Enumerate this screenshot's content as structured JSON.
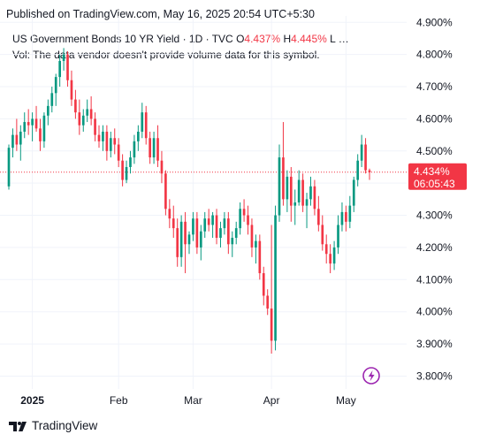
{
  "header": {
    "published_text": "Published on TradingView.com, May 16, 2025 20:54 UTC+5:30"
  },
  "legend": {
    "symbol": "US Government Bonds 10 YR Yield",
    "interval": "1D",
    "source": "TVC",
    "open_label": "O",
    "open_value": "4.437%",
    "high_label": "H",
    "high_value": "4.445%",
    "tail": "L …",
    "volume_note": "Vol: The data vendor doesn't provide volume data for this symbol."
  },
  "price_tag": {
    "value": "4.434%",
    "countdown": "06:05:43"
  },
  "footer": {
    "brand": "TradingView"
  },
  "colors": {
    "up": "#089981",
    "down": "#f23645",
    "grid": "#f0f3fa",
    "axis_text": "#131722",
    "lightning": "#9c27b0"
  },
  "chart_data": {
    "type": "candlestick",
    "y_axis": {
      "min": 3.76,
      "max": 4.92,
      "ticks": [
        "4.900%",
        "4.800%",
        "4.700%",
        "4.600%",
        "4.500%",
        "4.400%",
        "4.300%",
        "4.200%",
        "4.100%",
        "4.000%",
        "3.900%",
        "3.800%"
      ],
      "tick_values": [
        4.9,
        4.8,
        4.7,
        4.6,
        4.5,
        4.4,
        4.3,
        4.2,
        4.1,
        4.0,
        3.9,
        3.8
      ]
    },
    "x_axis": {
      "labels": [
        {
          "text": "2025",
          "index": 6,
          "bold": true
        },
        {
          "text": "Feb",
          "index": 28,
          "bold": false
        },
        {
          "text": "Mar",
          "index": 47,
          "bold": false
        },
        {
          "text": "Apr",
          "index": 67,
          "bold": false
        },
        {
          "text": "May",
          "index": 86,
          "bold": false
        }
      ]
    },
    "last_price": 4.434,
    "candles": [
      {
        "o": 4.39,
        "h": 4.52,
        "l": 4.38,
        "c": 4.51
      },
      {
        "o": 4.51,
        "h": 4.57,
        "l": 4.48,
        "c": 4.55
      },
      {
        "o": 4.55,
        "h": 4.6,
        "l": 4.5,
        "c": 4.52
      },
      {
        "o": 4.52,
        "h": 4.58,
        "l": 4.47,
        "c": 4.56
      },
      {
        "o": 4.56,
        "h": 4.62,
        "l": 4.54,
        "c": 4.59
      },
      {
        "o": 4.59,
        "h": 4.63,
        "l": 4.55,
        "c": 4.58
      },
      {
        "o": 4.58,
        "h": 4.62,
        "l": 4.53,
        "c": 4.6
      },
      {
        "o": 4.6,
        "h": 4.64,
        "l": 4.56,
        "c": 4.57
      },
      {
        "o": 4.57,
        "h": 4.6,
        "l": 4.5,
        "c": 4.53
      },
      {
        "o": 4.53,
        "h": 4.62,
        "l": 4.51,
        "c": 4.61
      },
      {
        "o": 4.61,
        "h": 4.66,
        "l": 4.58,
        "c": 4.64
      },
      {
        "o": 4.64,
        "h": 4.7,
        "l": 4.62,
        "c": 4.68
      },
      {
        "o": 4.68,
        "h": 4.74,
        "l": 4.64,
        "c": 4.73
      },
      {
        "o": 4.73,
        "h": 4.8,
        "l": 4.7,
        "c": 4.78
      },
      {
        "o": 4.78,
        "h": 4.82,
        "l": 4.75,
        "c": 4.8
      },
      {
        "o": 4.8,
        "h": 4.81,
        "l": 4.7,
        "c": 4.72
      },
      {
        "o": 4.72,
        "h": 4.75,
        "l": 4.64,
        "c": 4.66
      },
      {
        "o": 4.66,
        "h": 4.69,
        "l": 4.6,
        "c": 4.62
      },
      {
        "o": 4.62,
        "h": 4.66,
        "l": 4.55,
        "c": 4.58
      },
      {
        "o": 4.58,
        "h": 4.63,
        "l": 4.56,
        "c": 4.61
      },
      {
        "o": 4.61,
        "h": 4.66,
        "l": 4.59,
        "c": 4.63
      },
      {
        "o": 4.63,
        "h": 4.67,
        "l": 4.58,
        "c": 4.6
      },
      {
        "o": 4.6,
        "h": 4.62,
        "l": 4.53,
        "c": 4.55
      },
      {
        "o": 4.55,
        "h": 4.58,
        "l": 4.51,
        "c": 4.53
      },
      {
        "o": 4.53,
        "h": 4.58,
        "l": 4.5,
        "c": 4.56
      },
      {
        "o": 4.56,
        "h": 4.58,
        "l": 4.47,
        "c": 4.5
      },
      {
        "o": 4.5,
        "h": 4.56,
        "l": 4.48,
        "c": 4.54
      },
      {
        "o": 4.54,
        "h": 4.57,
        "l": 4.49,
        "c": 4.52
      },
      {
        "o": 4.52,
        "h": 4.54,
        "l": 4.45,
        "c": 4.47
      },
      {
        "o": 4.47,
        "h": 4.49,
        "l": 4.39,
        "c": 4.41
      },
      {
        "o": 4.41,
        "h": 4.47,
        "l": 4.4,
        "c": 4.45
      },
      {
        "o": 4.45,
        "h": 4.5,
        "l": 4.43,
        "c": 4.48
      },
      {
        "o": 4.48,
        "h": 4.55,
        "l": 4.46,
        "c": 4.53
      },
      {
        "o": 4.53,
        "h": 4.58,
        "l": 4.5,
        "c": 4.56
      },
      {
        "o": 4.56,
        "h": 4.65,
        "l": 4.54,
        "c": 4.62
      },
      {
        "o": 4.62,
        "h": 4.64,
        "l": 4.52,
        "c": 4.54
      },
      {
        "o": 4.54,
        "h": 4.56,
        "l": 4.46,
        "c": 4.48
      },
      {
        "o": 4.48,
        "h": 4.56,
        "l": 4.46,
        "c": 4.54
      },
      {
        "o": 4.54,
        "h": 4.58,
        "l": 4.45,
        "c": 4.47
      },
      {
        "o": 4.47,
        "h": 4.5,
        "l": 4.4,
        "c": 4.43
      },
      {
        "o": 4.43,
        "h": 4.44,
        "l": 4.3,
        "c": 4.32
      },
      {
        "o": 4.32,
        "h": 4.35,
        "l": 4.26,
        "c": 4.29
      },
      {
        "o": 4.29,
        "h": 4.33,
        "l": 4.23,
        "c": 4.26
      },
      {
        "o": 4.26,
        "h": 4.29,
        "l": 4.14,
        "c": 4.17
      },
      {
        "o": 4.17,
        "h": 4.3,
        "l": 4.14,
        "c": 4.28
      },
      {
        "o": 4.28,
        "h": 4.31,
        "l": 4.12,
        "c": 4.21
      },
      {
        "o": 4.21,
        "h": 4.25,
        "l": 4.18,
        "c": 4.24
      },
      {
        "o": 4.24,
        "h": 4.31,
        "l": 4.22,
        "c": 4.29
      },
      {
        "o": 4.29,
        "h": 4.31,
        "l": 4.18,
        "c": 4.2
      },
      {
        "o": 4.2,
        "h": 4.27,
        "l": 4.16,
        "c": 4.25
      },
      {
        "o": 4.25,
        "h": 4.31,
        "l": 4.23,
        "c": 4.29
      },
      {
        "o": 4.29,
        "h": 4.32,
        "l": 4.25,
        "c": 4.27
      },
      {
        "o": 4.27,
        "h": 4.31,
        "l": 4.23,
        "c": 4.3
      },
      {
        "o": 4.3,
        "h": 4.32,
        "l": 4.21,
        "c": 4.23
      },
      {
        "o": 4.23,
        "h": 4.28,
        "l": 4.2,
        "c": 4.26
      },
      {
        "o": 4.26,
        "h": 4.31,
        "l": 4.24,
        "c": 4.29
      },
      {
        "o": 4.29,
        "h": 4.31,
        "l": 4.18,
        "c": 4.21
      },
      {
        "o": 4.21,
        "h": 4.25,
        "l": 4.17,
        "c": 4.23
      },
      {
        "o": 4.23,
        "h": 4.28,
        "l": 4.21,
        "c": 4.26
      },
      {
        "o": 4.26,
        "h": 4.34,
        "l": 4.24,
        "c": 4.32
      },
      {
        "o": 4.32,
        "h": 4.35,
        "l": 4.28,
        "c": 4.3
      },
      {
        "o": 4.3,
        "h": 4.33,
        "l": 4.24,
        "c": 4.27
      },
      {
        "o": 4.27,
        "h": 4.29,
        "l": 4.17,
        "c": 4.2
      },
      {
        "o": 4.2,
        "h": 4.24,
        "l": 4.15,
        "c": 4.22
      },
      {
        "o": 4.22,
        "h": 4.24,
        "l": 4.1,
        "c": 4.12
      },
      {
        "o": 4.12,
        "h": 4.14,
        "l": 4.02,
        "c": 4.05
      },
      {
        "o": 4.05,
        "h": 4.07,
        "l": 3.99,
        "c": 4.01
      },
      {
        "o": 4.01,
        "h": 4.27,
        "l": 3.87,
        "c": 3.91
      },
      {
        "o": 3.91,
        "h": 4.33,
        "l": 3.88,
        "c": 4.3
      },
      {
        "o": 4.3,
        "h": 4.52,
        "l": 4.28,
        "c": 4.48
      },
      {
        "o": 4.48,
        "h": 4.59,
        "l": 4.33,
        "c": 4.35
      },
      {
        "o": 4.35,
        "h": 4.44,
        "l": 4.31,
        "c": 4.42
      },
      {
        "o": 4.42,
        "h": 4.45,
        "l": 4.28,
        "c": 4.33
      },
      {
        "o": 4.33,
        "h": 4.38,
        "l": 4.27,
        "c": 4.34
      },
      {
        "o": 4.34,
        "h": 4.44,
        "l": 4.33,
        "c": 4.41
      },
      {
        "o": 4.41,
        "h": 4.43,
        "l": 4.31,
        "c": 4.33
      },
      {
        "o": 4.33,
        "h": 4.37,
        "l": 4.26,
        "c": 4.35
      },
      {
        "o": 4.35,
        "h": 4.42,
        "l": 4.33,
        "c": 4.39
      },
      {
        "o": 4.39,
        "h": 4.41,
        "l": 4.3,
        "c": 4.32
      },
      {
        "o": 4.32,
        "h": 4.36,
        "l": 4.25,
        "c": 4.27
      },
      {
        "o": 4.27,
        "h": 4.3,
        "l": 4.19,
        "c": 4.21
      },
      {
        "o": 4.21,
        "h": 4.24,
        "l": 4.15,
        "c": 4.18
      },
      {
        "o": 4.18,
        "h": 4.21,
        "l": 4.12,
        "c": 4.15
      },
      {
        "o": 4.15,
        "h": 4.22,
        "l": 4.13,
        "c": 4.2
      },
      {
        "o": 4.2,
        "h": 4.3,
        "l": 4.18,
        "c": 4.27
      },
      {
        "o": 4.27,
        "h": 4.34,
        "l": 4.25,
        "c": 4.31
      },
      {
        "o": 4.31,
        "h": 4.33,
        "l": 4.25,
        "c": 4.28
      },
      {
        "o": 4.28,
        "h": 4.36,
        "l": 4.26,
        "c": 4.33
      },
      {
        "o": 4.33,
        "h": 4.42,
        "l": 4.31,
        "c": 4.41
      },
      {
        "o": 4.41,
        "h": 4.49,
        "l": 4.39,
        "c": 4.47
      },
      {
        "o": 4.47,
        "h": 4.55,
        "l": 4.45,
        "c": 4.52
      },
      {
        "o": 4.52,
        "h": 4.54,
        "l": 4.43,
        "c": 4.44
      },
      {
        "o": 4.44,
        "h": 4.445,
        "l": 4.41,
        "c": 4.434
      }
    ]
  }
}
